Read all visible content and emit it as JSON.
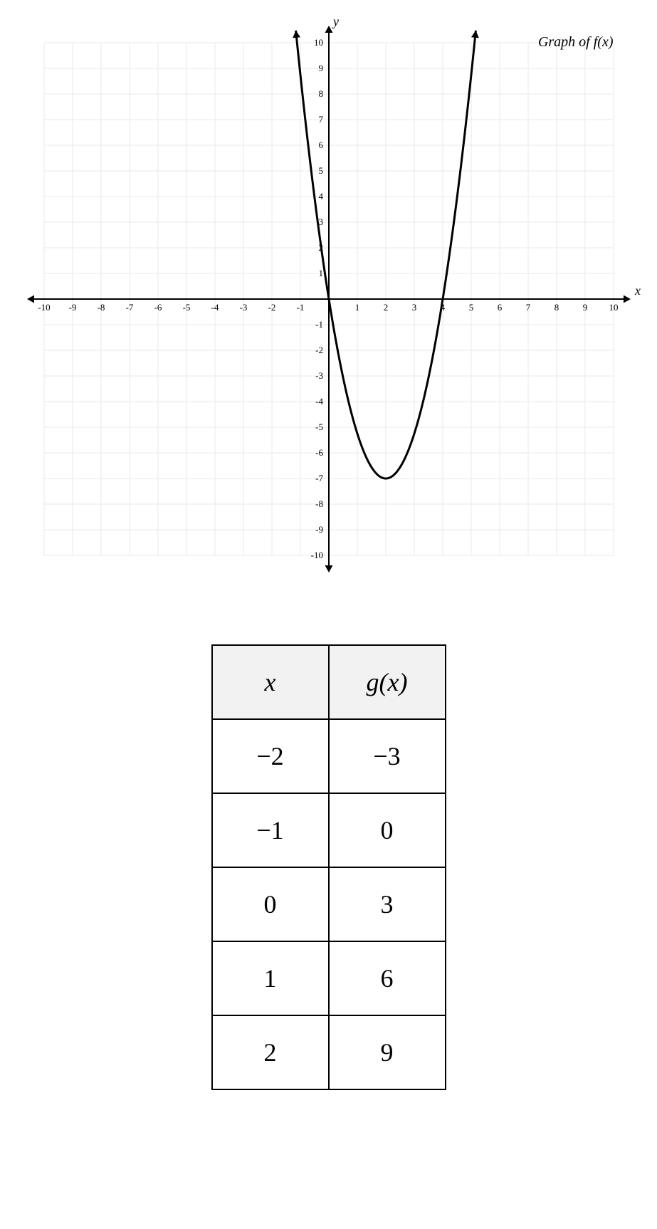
{
  "graph": {
    "title": "Graph of f(x)",
    "x_axis_label": "x",
    "y_axis_label": "y",
    "xlim": [
      -10,
      10
    ],
    "ylim": [
      -10,
      10
    ],
    "x_ticks": [
      -10,
      -9,
      -8,
      -7,
      -6,
      -5,
      -4,
      -3,
      -2,
      -1,
      1,
      2,
      3,
      4,
      5,
      6,
      7,
      8,
      9,
      10
    ],
    "y_ticks": [
      -10,
      -9,
      -8,
      -7,
      -6,
      -5,
      -4,
      -3,
      -2,
      -1,
      1,
      2,
      3,
      4,
      5,
      6,
      7,
      8,
      9,
      10
    ],
    "grid_color": "#e8e8e8",
    "axis_color": "#000000",
    "curve_color": "#000000",
    "curve_width": 3,
    "background": "#ffffff",
    "curve_type": "parabola",
    "vertex": [
      2,
      -7
    ],
    "coefficient": 1.75,
    "tick_fontsize": 13
  },
  "table": {
    "header_x": "x",
    "header_gx": "g(x)",
    "rows": [
      {
        "x": "−2",
        "gx": "−3"
      },
      {
        "x": "−1",
        "gx": "0"
      },
      {
        "x": "0",
        "gx": "3"
      },
      {
        "x": "1",
        "gx": "6"
      },
      {
        "x": "2",
        "gx": "9"
      }
    ],
    "header_bg": "#f2f2f2",
    "border_color": "#000000",
    "cell_fontsize": 36
  }
}
